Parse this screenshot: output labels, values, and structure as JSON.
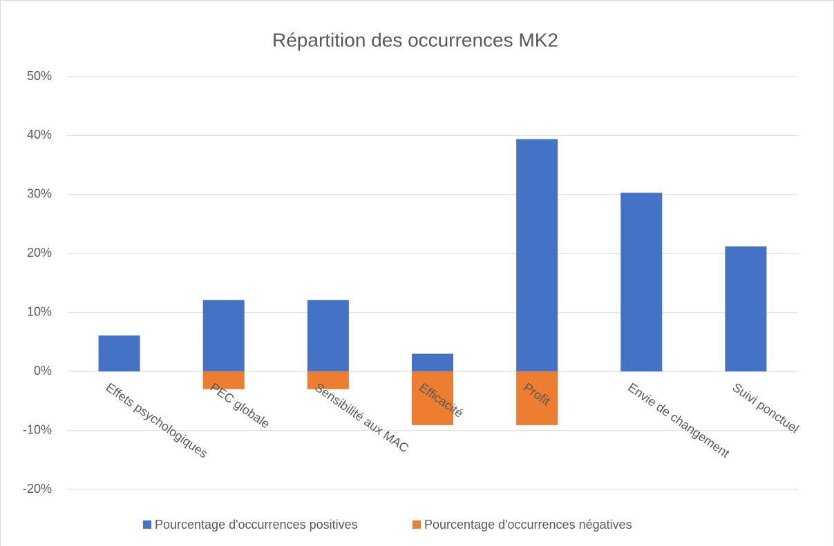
{
  "chart_data": {
    "type": "bar",
    "title": "Répartition des occurrences MK2",
    "categories": [
      "Effets psychologiques",
      "PEC globale",
      "Sensibilité aux MAC",
      "Efficacité",
      "Profit",
      "Envie de changement",
      "Suivi ponctuel"
    ],
    "series": [
      {
        "name": "Pourcentage d'occurrences positives",
        "color": "#4472c4",
        "values": [
          6.1,
          12.1,
          12.1,
          3,
          39.4,
          30.3,
          21.2
        ]
      },
      {
        "name": "Pourcentage d'occurrences négatives",
        "color": "#ed7d31",
        "values": [
          0,
          -3,
          -3,
          -9.1,
          -9.1,
          0,
          0
        ]
      }
    ],
    "ylim": [
      -20,
      50
    ],
    "yticks": [
      {
        "value": -20,
        "label": "-20%"
      },
      {
        "value": -10,
        "label": "-10%"
      },
      {
        "value": 0,
        "label": "0%"
      },
      {
        "value": 10,
        "label": "10%"
      },
      {
        "value": 20,
        "label": "20%"
      },
      {
        "value": 30,
        "label": "30%"
      },
      {
        "value": 40,
        "label": "40%"
      },
      {
        "value": 50,
        "label": "50%"
      }
    ],
    "grid": true,
    "legend": "bottom"
  }
}
